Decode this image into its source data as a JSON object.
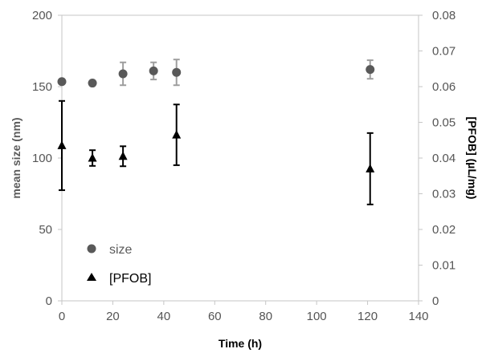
{
  "chart_data": {
    "type": "scatter",
    "title": "",
    "xlabel": "Time (h)",
    "ylabel_left": "mean size (nm)",
    "ylabel_right": "[PFOB] (µL/mg)",
    "xlim": [
      0,
      140
    ],
    "x_ticks": [
      "0",
      "20",
      "40",
      "60",
      "80",
      "100",
      "120",
      "140"
    ],
    "ylim_left": [
      0,
      200
    ],
    "y_left_ticks": [
      "0",
      "50",
      "100",
      "150",
      "200"
    ],
    "ylim_right": [
      0,
      0.08
    ],
    "y_right_ticks": [
      "0",
      "0.01",
      "0.02",
      "0.03",
      "0.04",
      "0.05",
      "0.06",
      "0.07",
      "0.08"
    ],
    "grid": false,
    "legend_position": "bottom-left",
    "series": [
      {
        "name": "size",
        "axis": "left",
        "marker": "circle",
        "color": "#595959",
        "errorbar_color": "#9e9e9e",
        "points": [
          {
            "x": 0,
            "y": 153.5,
            "err": 0
          },
          {
            "x": 12,
            "y": 152.5,
            "err": 0
          },
          {
            "x": 24,
            "y": 159,
            "err": 8
          },
          {
            "x": 36,
            "y": 161,
            "err": 6
          },
          {
            "x": 45,
            "y": 160,
            "err": 9
          },
          {
            "x": 121,
            "y": 162,
            "err": 6.5
          }
        ]
      },
      {
        "name": "[PFOB]",
        "axis": "right",
        "marker": "triangle",
        "color": "#000000",
        "errorbar_color": "#000000",
        "points": [
          {
            "x": 0,
            "y": 0.0435,
            "err": 0.0125
          },
          {
            "x": 12,
            "y": 0.04,
            "err": 0.0022
          },
          {
            "x": 24,
            "y": 0.0405,
            "err": 0.0028
          },
          {
            "x": 45,
            "y": 0.0465,
            "err": 0.0085
          },
          {
            "x": 121,
            "y": 0.037,
            "err": 0.01
          }
        ]
      }
    ]
  }
}
